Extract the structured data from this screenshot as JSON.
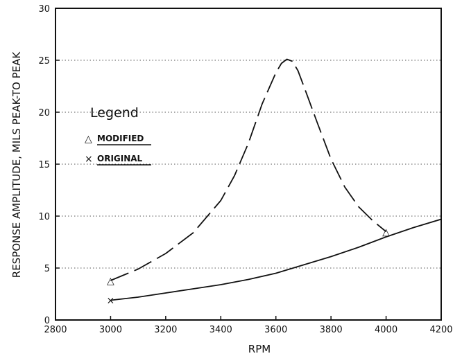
{
  "chart_data": {
    "type": "line",
    "title": "",
    "xlabel": "RPM",
    "ylabel": "RESPONSE AMPLITUDE, MILS PEAK-TO PEAK",
    "xlim": [
      2800,
      4200
    ],
    "ylim": [
      0,
      30
    ],
    "xticks": [
      2800,
      3000,
      3200,
      3400,
      3600,
      3800,
      4000,
      4200
    ],
    "yticks": [
      0,
      5,
      10,
      15,
      20,
      25,
      30
    ],
    "grid": "horizontal-dotted",
    "legend": {
      "title": "Legend",
      "placement": "left",
      "entries": [
        {
          "marker": "△",
          "label": "MODIFIED"
        },
        {
          "marker": "×",
          "label": "ORIGINAL"
        }
      ]
    },
    "series": [
      {
        "name": "MODIFIED",
        "style": "dashed",
        "marker": "△",
        "x": [
          3000,
          3100,
          3200,
          3300,
          3400,
          3450,
          3500,
          3550,
          3600,
          3620,
          3640,
          3660,
          3680,
          3700,
          3750,
          3800,
          3850,
          3900,
          3950,
          4000
        ],
        "y": [
          3.8,
          4.9,
          6.4,
          8.4,
          11.5,
          13.9,
          17.0,
          20.8,
          23.8,
          24.7,
          25.1,
          24.9,
          24.0,
          22.6,
          19.0,
          15.5,
          12.8,
          10.9,
          9.6,
          8.5
        ]
      },
      {
        "name": "ORIGINAL",
        "style": "solid",
        "marker": "×",
        "x": [
          3000,
          3100,
          3200,
          3300,
          3400,
          3500,
          3600,
          3700,
          3800,
          3900,
          4000,
          4100,
          4200
        ],
        "y": [
          1.9,
          2.2,
          2.6,
          3.0,
          3.4,
          3.9,
          4.5,
          5.3,
          6.1,
          7.0,
          8.0,
          8.9,
          9.7
        ]
      }
    ],
    "markers": [
      {
        "series": "MODIFIED",
        "x": 3000,
        "y": 3.8
      },
      {
        "series": "MODIFIED",
        "x": 4000,
        "y": 8.5
      },
      {
        "series": "ORIGINAL",
        "x": 3000,
        "y": 1.9
      }
    ]
  }
}
